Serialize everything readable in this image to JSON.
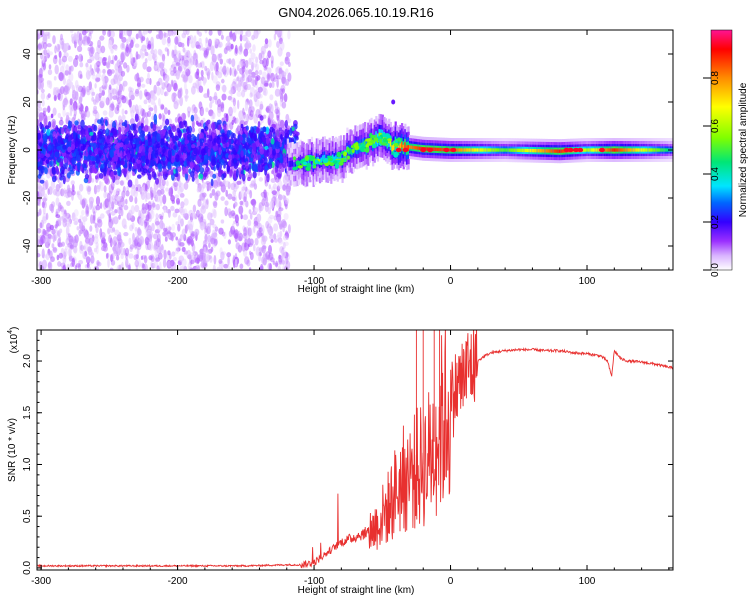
{
  "title": "GN04.2026.065.10.19.R16",
  "chart_data": [
    {
      "type": "heatmap",
      "title": "GN04.2026.065.10.19.R16",
      "xlabel": "Height of straight line (km)",
      "ylabel": "Frequency (Hz)",
      "xlim": [
        -303,
        163
      ],
      "ylim": [
        -50,
        50
      ],
      "xticks": [
        -300,
        -200,
        -100,
        0,
        100
      ],
      "yticks": [
        -40,
        -20,
        0,
        20,
        40
      ],
      "colorbar": {
        "label": "Normalized spectral amplitude",
        "range": [
          0.0,
          1.0
        ],
        "ticks": [
          0.0,
          0.2,
          0.4,
          0.6,
          0.8
        ],
        "colormap": [
          "#ffffff",
          "#cc99ff",
          "#6600cc",
          "#0000ff",
          "#00e5ff",
          "#00e676",
          "#7fff00",
          "#ffff00",
          "#ff8c00",
          "#ff0000",
          "#ff1493"
        ]
      },
      "ridge": {
        "x": [
          -120,
          -100,
          -80,
          -60,
          -50,
          -40,
          -20,
          0,
          40,
          80,
          100,
          120,
          163
        ],
        "freq": [
          -6,
          -5,
          -3,
          3,
          5,
          2,
          0.5,
          0,
          0,
          -0.5,
          0,
          0,
          0
        ],
        "peak_amplitude": [
          0.15,
          0.3,
          0.35,
          0.45,
          0.55,
          0.7,
          0.9,
          0.85,
          0.5,
          0.9,
          0.6,
          0.9,
          0.4
        ]
      }
    },
    {
      "type": "line",
      "xlabel": "Height of straight line (km)",
      "ylabel": "SNR (10 * v/v)",
      "yscale_label": "(x10",
      "yscale_exp": "4",
      "xlim": [
        -303,
        163
      ],
      "ylim": [
        -0.02,
        2.3
      ],
      "xticks": [
        -300,
        -200,
        -100,
        0,
        100
      ],
      "yticks": [
        0.0,
        0.5,
        1.0,
        1.5,
        2.0
      ],
      "series": [
        {
          "name": "SNR",
          "color": "#e8302f",
          "x": [
            -303,
            -250,
            -200,
            -150,
            -120,
            -110,
            -100,
            -90,
            -80,
            -70,
            -60,
            -55,
            -50,
            -45,
            -40,
            -35,
            -30,
            -25,
            -20,
            -15,
            -10,
            -5,
            0,
            5,
            10,
            15,
            20,
            25,
            30,
            40,
            50,
            60,
            70,
            80,
            90,
            100,
            110,
            115,
            118,
            120,
            125,
            130,
            140,
            150,
            163
          ],
          "y": [
            0.02,
            0.02,
            0.02,
            0.02,
            0.03,
            0.03,
            0.05,
            0.15,
            0.25,
            0.3,
            0.35,
            0.4,
            0.5,
            0.6,
            0.75,
            0.85,
            0.9,
            0.95,
            1.0,
            1.1,
            1.3,
            1.45,
            1.6,
            1.75,
            1.85,
            1.95,
            2.0,
            2.05,
            2.08,
            2.1,
            2.11,
            2.11,
            2.1,
            2.1,
            2.08,
            2.07,
            2.05,
            2.0,
            1.85,
            2.1,
            2.02,
            2.0,
            1.99,
            1.97,
            1.93
          ]
        }
      ]
    }
  ]
}
